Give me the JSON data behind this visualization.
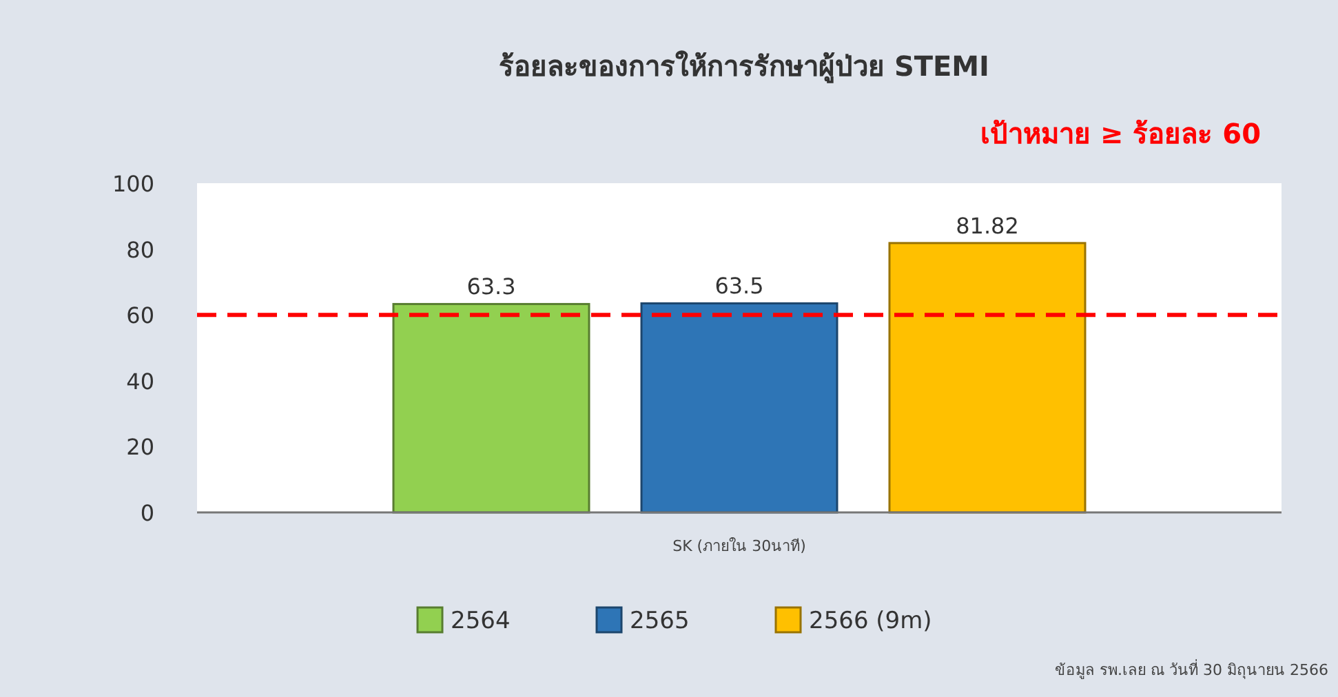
{
  "chart_data": {
    "type": "bar",
    "title": "ร้อยละของการให้การรักษาผู้ป่วย STEMI",
    "categories": [
      "SK (ภายใน 30นาที)"
    ],
    "series": [
      {
        "name": "2564",
        "color": "#92d050",
        "values": [
          63.3
        ]
      },
      {
        "name": "2565",
        "color": "#2e75b6",
        "values": [
          63.5
        ]
      },
      {
        "name": "2566 (9m)",
        "color": "#ffc000",
        "values": [
          81.82
        ]
      }
    ],
    "ylim": [
      0,
      100
    ],
    "yticks": [
      0,
      20,
      40,
      60,
      80,
      100
    ],
    "data_labels": true,
    "legend": "bottom",
    "ref_lines": [
      {
        "axis": "y",
        "value": 60,
        "label": "เป้าหมาย ≥ ร้อยละ 60",
        "color": "#ff0000",
        "line_style": "dashed"
      }
    ],
    "annotations": [
      "ข้อมูล รพ.เลย ณ วันที่ 30 มิถุนายน 2566"
    ]
  }
}
